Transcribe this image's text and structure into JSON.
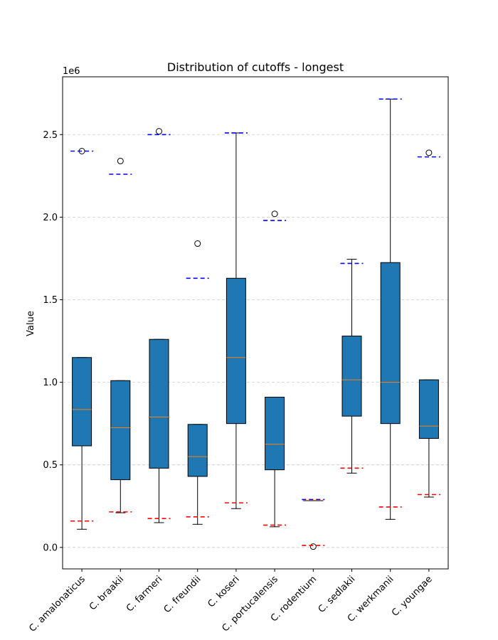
{
  "chart_data": {
    "type": "box",
    "title": "Distribution of cutoffs - longest",
    "xlabel": "",
    "ylabel": "Value",
    "y_offset_label": "1e6",
    "y_multiplier": 1000000,
    "ylim": [
      -130000,
      2850000
    ],
    "yticks": [
      0,
      500000,
      1000000,
      1500000,
      2000000,
      2500000
    ],
    "ytick_labels": [
      "0.0",
      "0.5",
      "1.0",
      "1.5",
      "2.0",
      "2.5"
    ],
    "grid": "horizontal dashed",
    "box_color": "#1f77b4",
    "median_color": "#ff7f0e",
    "lower_ref_color": "#ff0000",
    "upper_ref_color": "#0000ff",
    "categories": [
      "C. amalonaticus",
      "C. braakii",
      "C. farmeri",
      "C. freundii",
      "C. koseri",
      "C. portucalensis",
      "C. rodentium",
      "C. sedlakii",
      "C. werkmanii",
      "C. youngae"
    ],
    "boxes": [
      {
        "whislo": 110000,
        "q1": 615000,
        "med": 835000,
        "q3": 1150000,
        "whishi": 1150000,
        "fliers": [
          2400000
        ],
        "lower_ref": 160000,
        "upper_ref": 2400000
      },
      {
        "whislo": 210000,
        "q1": 410000,
        "med": 725000,
        "q3": 1010000,
        "whishi": 1010000,
        "fliers": [
          2340000
        ],
        "lower_ref": 215000,
        "upper_ref": 2260000
      },
      {
        "whislo": 150000,
        "q1": 480000,
        "med": 790000,
        "q3": 1260000,
        "whishi": 1260000,
        "fliers": [
          2520000
        ],
        "lower_ref": 175000,
        "upper_ref": 2500000
      },
      {
        "whislo": 140000,
        "q1": 430000,
        "med": 550000,
        "q3": 745000,
        "whishi": 745000,
        "fliers": [
          1840000
        ],
        "lower_ref": 185000,
        "upper_ref": 1630000
      },
      {
        "whislo": 235000,
        "q1": 750000,
        "med": 1150000,
        "q3": 1630000,
        "whishi": 2510000,
        "fliers": [],
        "lower_ref": 270000,
        "upper_ref": 2510000
      },
      {
        "whislo": 125000,
        "q1": 470000,
        "med": 625000,
        "q3": 910000,
        "whishi": 910000,
        "fliers": [
          2020000
        ],
        "lower_ref": 135000,
        "upper_ref": 1980000
      },
      {
        "whislo": 285000,
        "q1": 285000,
        "med": 285000,
        "q3": 285000,
        "whishi": 285000,
        "fliers": [
          5000
        ],
        "lower_ref": 12000,
        "upper_ref": 290000
      },
      {
        "whislo": 450000,
        "q1": 795000,
        "med": 1015000,
        "q3": 1280000,
        "whishi": 1745000,
        "fliers": [],
        "lower_ref": 480000,
        "upper_ref": 1720000
      },
      {
        "whislo": 170000,
        "q1": 750000,
        "med": 1000000,
        "q3": 1725000,
        "whishi": 2715000,
        "fliers": [],
        "lower_ref": 245000,
        "upper_ref": 2715000
      },
      {
        "whislo": 305000,
        "q1": 660000,
        "med": 735000,
        "q3": 1015000,
        "whishi": 1015000,
        "fliers": [
          2390000
        ],
        "lower_ref": 320000,
        "upper_ref": 2365000
      }
    ]
  }
}
